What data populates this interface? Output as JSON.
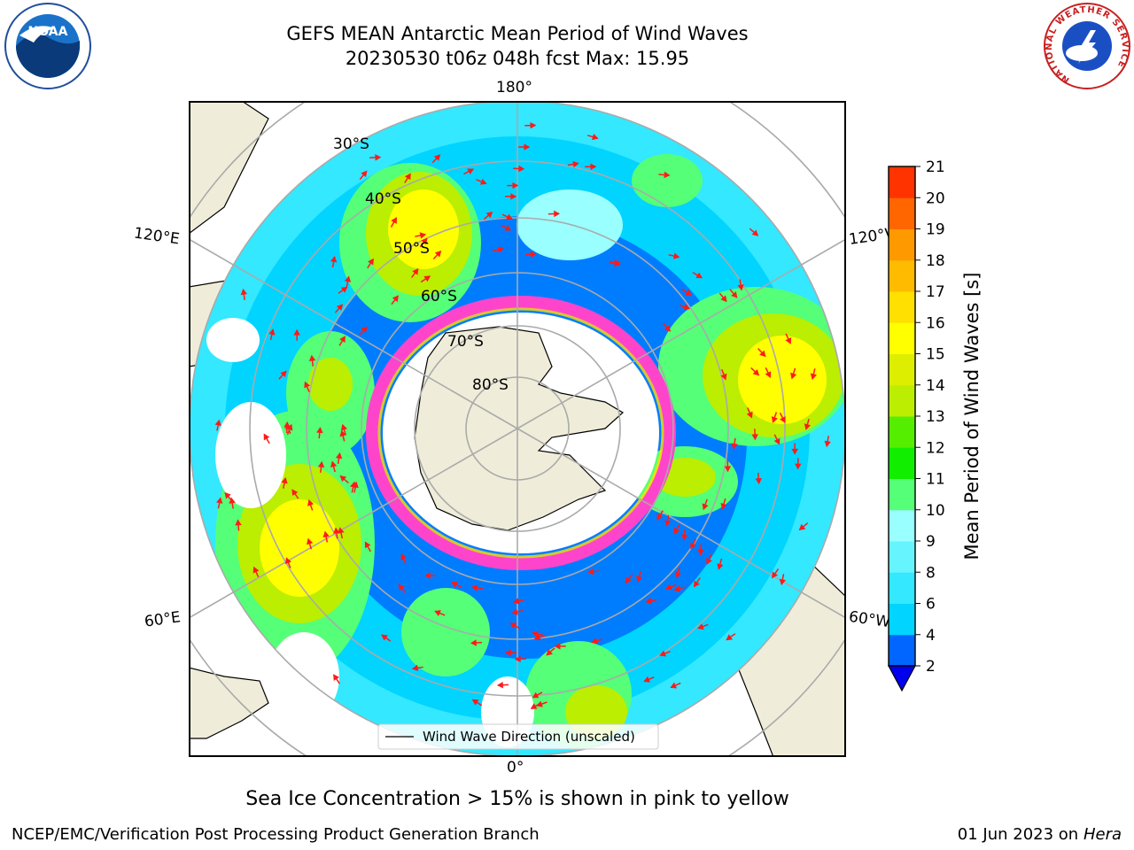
{
  "header": {
    "title_line1": "GEFS MEAN Antarctic Mean Period of Wind Waves",
    "title_line2": "20230530 t06z 048h fcst   Max: 15.95",
    "logo_left": "noaa-logo",
    "logo_right": "nws-logo",
    "noaa_text": "NOAA",
    "nws_ring_text": "NATIONAL WEATHER SERVICE"
  },
  "map": {
    "projection": "south-polar-stereographic",
    "lon_labels": {
      "top": "180°",
      "bottom": "0°",
      "left_upper": "120°E",
      "left_lower": "60°E",
      "right_upper": "120°W",
      "right_lower": "60°W"
    },
    "lat_labels": [
      "30°S",
      "40°S",
      "50°S",
      "60°S",
      "70°S",
      "80°S"
    ],
    "legend_label": "Wind Wave Direction (unscaled)",
    "land_color": "#efedd9",
    "arrow_color": "#ff1a1a",
    "sea_ice_color": "#ff44cc"
  },
  "colorbar": {
    "label": "Mean Period of Wind Waves [s]",
    "ticks": [
      "2",
      "4",
      "6",
      "8",
      "9",
      "10",
      "11",
      "12",
      "13",
      "14",
      "15",
      "16",
      "17",
      "18",
      "19",
      "20",
      "21"
    ],
    "colors": [
      "#0066ff",
      "#00d4ff",
      "#33e8ff",
      "#66f4ff",
      "#99ffff",
      "#55ff77",
      "#11ee00",
      "#55ee00",
      "#bbee00",
      "#ddee00",
      "#ffff00",
      "#ffe000",
      "#ffbb00",
      "#ff9900",
      "#ff6600",
      "#ff3300",
      "#ff0000"
    ],
    "under_color": "#0000ee"
  },
  "footer": {
    "note": "Sea Ice Concentration > 15% is shown in pink to yellow",
    "credit_left": "NCEP/EMC/Verification Post Processing Product Generation Branch",
    "credit_right_date": "01 Jun 2023 on",
    "credit_right_host": "Hera"
  }
}
